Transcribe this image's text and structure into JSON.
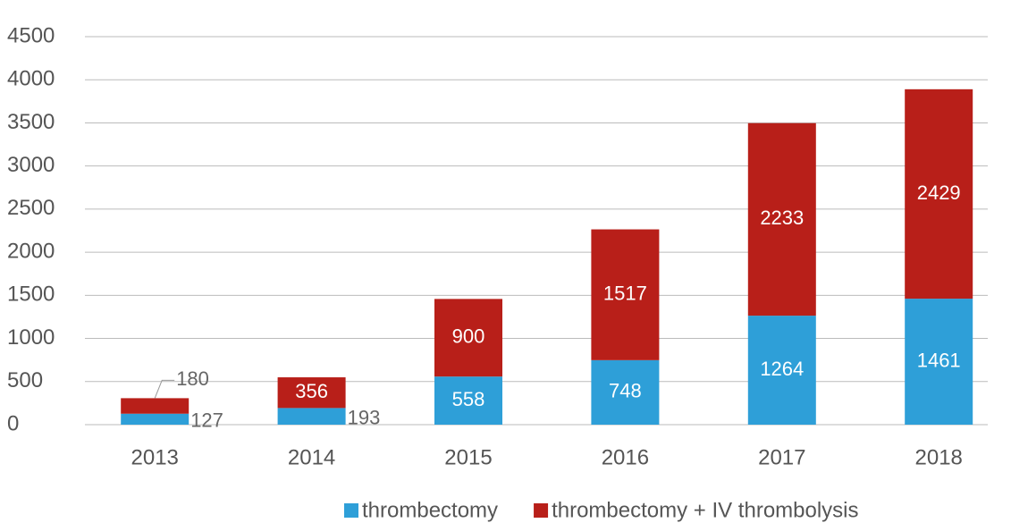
{
  "chart_data": {
    "type": "stacked_bar",
    "categories": [
      "2013",
      "2014",
      "2015",
      "2016",
      "2017",
      "2018"
    ],
    "series": [
      {
        "name": "thrombectomy",
        "color": "#2e9fd8",
        "values": [
          127,
          193,
          558,
          748,
          1264,
          1461
        ]
      },
      {
        "name": "thrombectomy + IV thrombolysis",
        "color": "#b81f19",
        "values": [
          180,
          356,
          900,
          1517,
          2233,
          2429
        ]
      }
    ],
    "ylim": [
      0,
      4500
    ],
    "yticks": [
      0,
      500,
      1000,
      1500,
      2000,
      2500,
      3000,
      3500,
      4000,
      4500
    ],
    "grid": true,
    "legend": "bottom"
  }
}
